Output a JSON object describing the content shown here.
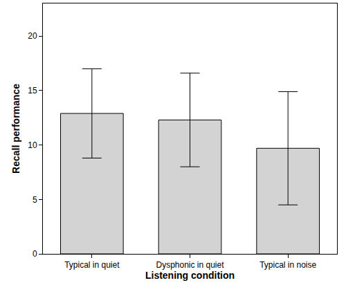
{
  "chart_data": {
    "type": "bar",
    "x_label": "Listening condition",
    "y_label": "Recall performance",
    "categories": [
      "Typical in quiet",
      "Dysphonic in quiet",
      "Typical in noise"
    ],
    "values": [
      12.9,
      12.3,
      9.7
    ],
    "errors": [
      4.1,
      4.3,
      5.2
    ],
    "color": "#d3d3d3",
    "ylim": [
      0,
      23
    ],
    "yticks": [
      0,
      5,
      10,
      15,
      20
    ],
    "grid": false
  }
}
